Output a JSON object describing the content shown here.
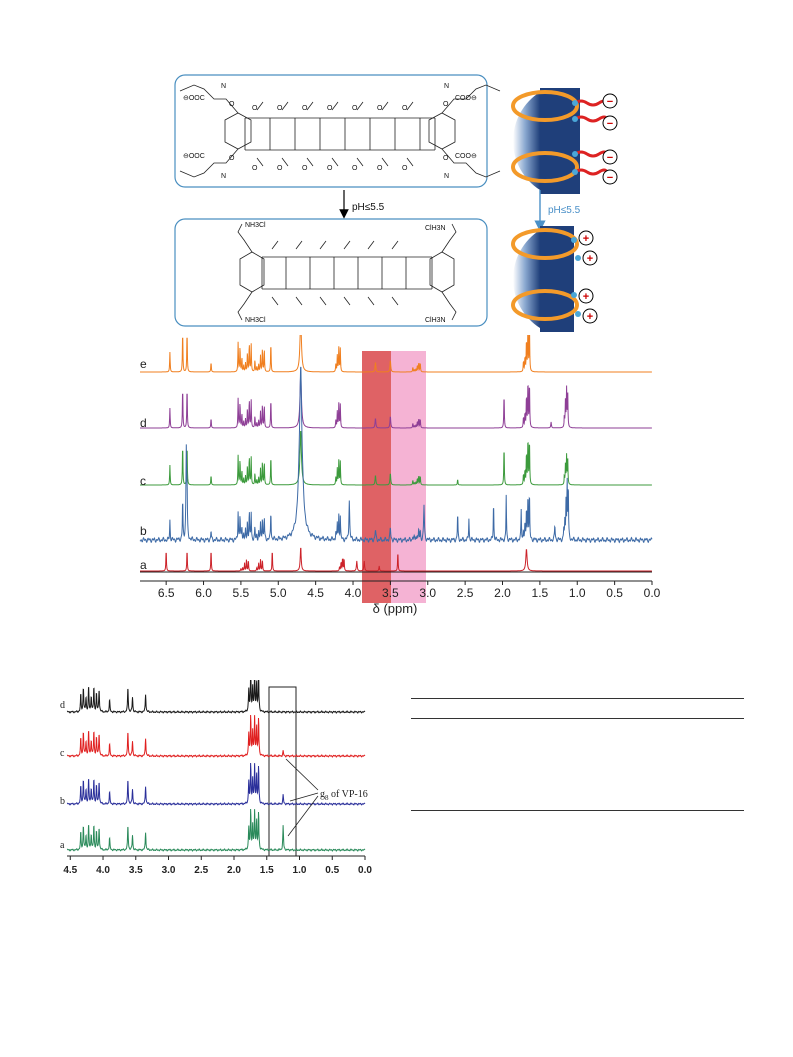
{
  "scheme": {
    "arrow_label_left": "pH≤5.5",
    "arrow_label_right": "pH≤5.5",
    "top_box_groups": [
      "⊖OOC",
      "COO⊖",
      "⊖OOC",
      "COO⊖"
    ],
    "bottom_box_groups": [
      "NH3Cl",
      "ClH3N",
      "NH3Cl",
      "ClH3N"
    ],
    "minus_sign": "−",
    "plus_sign": "+"
  },
  "figure_top": {
    "x_axis_label": "δ (ppm)",
    "ticks": [
      "6.5",
      "6.0",
      "5.5",
      "5.0",
      "4.5",
      "4.0",
      "3.5",
      "3.0",
      "2.5",
      "2.0",
      "1.5",
      "1.0",
      "0.5",
      "0.0"
    ],
    "trace_labels": [
      "e",
      "d",
      "c",
      "b",
      "a"
    ],
    "colors": {
      "e": "#f07f1f",
      "d": "#8e3f96",
      "c": "#3c9a3c",
      "b": "#3d6aa6",
      "a": "#cc2229"
    },
    "highlight_dark": "#d9474a",
    "highlight_light": "#f29ac6"
  },
  "figure_bottom": {
    "ticks": [
      "4.5",
      "4.0",
      "3.5",
      "3.0",
      "2.5",
      "2.0",
      "1.5",
      "1.0",
      "0.5",
      "0.0"
    ],
    "trace_labels": [
      "d",
      "c",
      "b",
      "a"
    ],
    "colors": {
      "d": "#1a1a1a",
      "c": "#e02020",
      "b": "#2a2f9a",
      "a": "#2a8a5a"
    },
    "annotation_sub": "8",
    "annotation_pre": "g",
    "annotation_text": " of VP-16"
  }
}
